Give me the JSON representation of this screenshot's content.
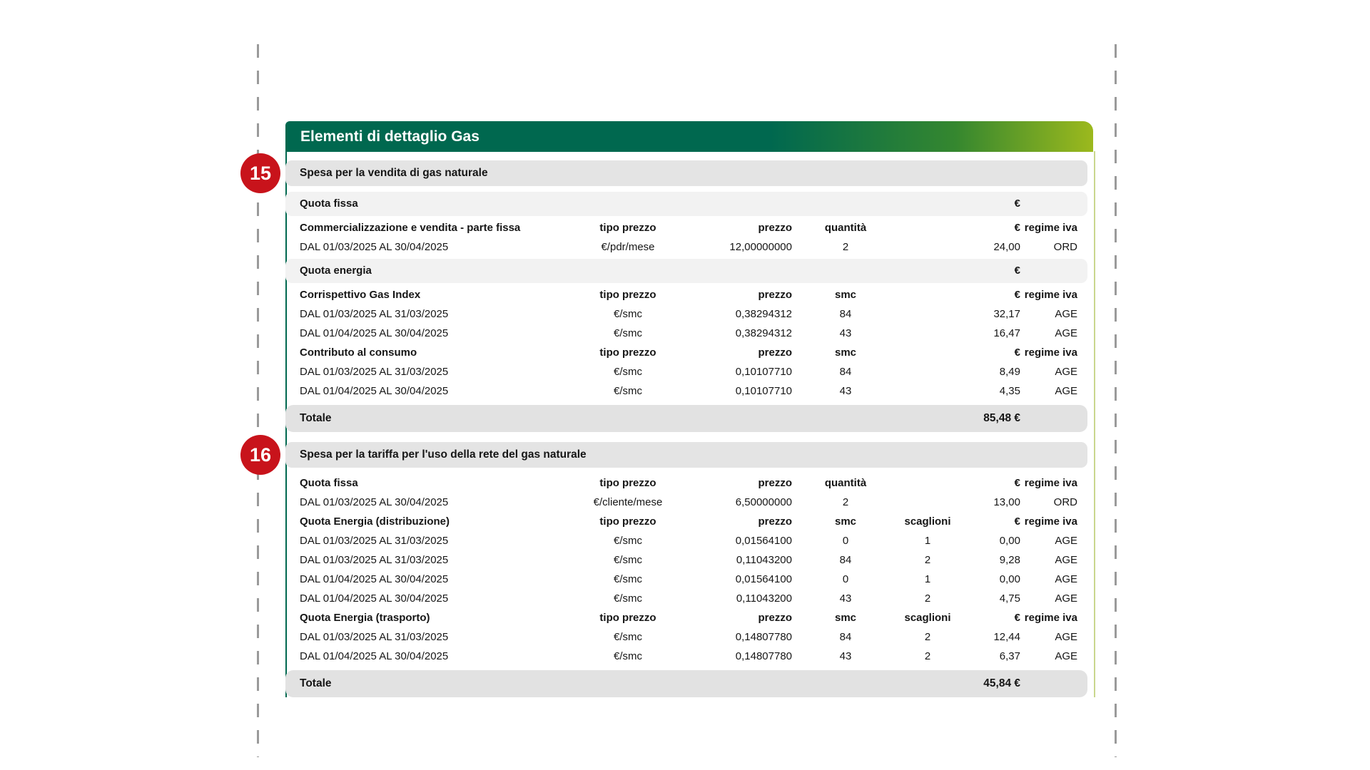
{
  "document": {
    "header": {
      "title": "Elementi di dettaglio Gas"
    },
    "colors": {
      "brand_green_dark": "#00684f",
      "brand_green_light": "#9cb91d",
      "badge_red": "#c8131b",
      "section_bar_gray": "#e4e4e4",
      "subsection_bar_gray": "#f2f2f2",
      "total_bar_gray": "#e2e2e2",
      "right_rule_green": "#c9d78d"
    },
    "sections": [
      {
        "badge": "15",
        "title": "Spesa per la vendita di gas naturale",
        "rows": [
          {
            "type": "subbar",
            "cells": [
              "Quota fissa",
              "",
              "",
              "",
              "",
              "€",
              ""
            ]
          },
          {
            "type": "columns",
            "cells": [
              "Commercializzazione e vendita - parte fissa",
              "tipo prezzo",
              "prezzo",
              "quantità",
              "",
              "€",
              "regime iva"
            ]
          },
          {
            "type": "data",
            "cells": [
              "DAL 01/03/2025 AL 30/04/2025",
              "€/pdr/mese",
              "12,00000000",
              "2",
              "",
              "24,00",
              "ORD"
            ]
          },
          {
            "type": "subbar",
            "cells": [
              "Quota energia",
              "",
              "",
              "",
              "",
              "€",
              ""
            ]
          },
          {
            "type": "columns",
            "cells": [
              "Corrispettivo Gas Index",
              "tipo prezzo",
              "prezzo",
              "smc",
              "",
              "€",
              "regime iva"
            ]
          },
          {
            "type": "data",
            "cells": [
              "DAL 01/03/2025 AL 31/03/2025",
              "€/smc",
              "0,38294312",
              "84",
              "",
              "32,17",
              "AGE"
            ]
          },
          {
            "type": "data",
            "cells": [
              "DAL 01/04/2025 AL 30/04/2025",
              "€/smc",
              "0,38294312",
              "43",
              "",
              "16,47",
              "AGE"
            ]
          },
          {
            "type": "columns",
            "cells": [
              "Contributo al consumo",
              "tipo prezzo",
              "prezzo",
              "smc",
              "",
              "€",
              "regime iva"
            ]
          },
          {
            "type": "data",
            "cells": [
              "DAL 01/03/2025 AL 31/03/2025",
              "€/smc",
              "0,10107710",
              "84",
              "",
              "8,49",
              "AGE"
            ]
          },
          {
            "type": "data",
            "cells": [
              "DAL 01/04/2025 AL 30/04/2025",
              "€/smc",
              "0,10107710",
              "43",
              "",
              "4,35",
              "AGE"
            ]
          }
        ],
        "total": {
          "label": "Totale",
          "value": "85,48 €"
        }
      },
      {
        "badge": "16",
        "title": "Spesa per la tariffa per l'uso della rete del gas naturale",
        "rows": [
          {
            "type": "columns",
            "cells": [
              "Quota fissa",
              "tipo prezzo",
              "prezzo",
              "quantità",
              "",
              "€",
              "regime iva"
            ]
          },
          {
            "type": "data",
            "cells": [
              "DAL 01/03/2025 AL 30/04/2025",
              "€/cliente/mese",
              "6,50000000",
              "2",
              "",
              "13,00",
              "ORD"
            ]
          },
          {
            "type": "columns",
            "cells": [
              "Quota Energia (distribuzione)",
              "tipo prezzo",
              "prezzo",
              "smc",
              "scaglioni",
              "€",
              "regime iva"
            ]
          },
          {
            "type": "data",
            "cells": [
              "DAL 01/03/2025 AL 31/03/2025",
              "€/smc",
              "0,01564100",
              "0",
              "1",
              "0,00",
              "AGE"
            ]
          },
          {
            "type": "data",
            "cells": [
              "DAL 01/03/2025 AL 31/03/2025",
              "€/smc",
              "0,11043200",
              "84",
              "2",
              "9,28",
              "AGE"
            ]
          },
          {
            "type": "data",
            "cells": [
              "DAL 01/04/2025 AL 30/04/2025",
              "€/smc",
              "0,01564100",
              "0",
              "1",
              "0,00",
              "AGE"
            ]
          },
          {
            "type": "data",
            "cells": [
              "DAL 01/04/2025 AL 30/04/2025",
              "€/smc",
              "0,11043200",
              "43",
              "2",
              "4,75",
              "AGE"
            ]
          },
          {
            "type": "columns",
            "cells": [
              "Quota Energia (trasporto)",
              "tipo prezzo",
              "prezzo",
              "smc",
              "scaglioni",
              "€",
              "regime iva"
            ]
          },
          {
            "type": "data",
            "cells": [
              "DAL 01/03/2025 AL 31/03/2025",
              "€/smc",
              "0,14807780",
              "84",
              "2",
              "12,44",
              "AGE"
            ]
          },
          {
            "type": "data",
            "cells": [
              "DAL 01/04/2025 AL 30/04/2025",
              "€/smc",
              "0,14807780",
              "43",
              "2",
              "6,37",
              "AGE"
            ]
          }
        ],
        "total": {
          "label": "Totale",
          "value": "45,84 €"
        }
      }
    ]
  }
}
